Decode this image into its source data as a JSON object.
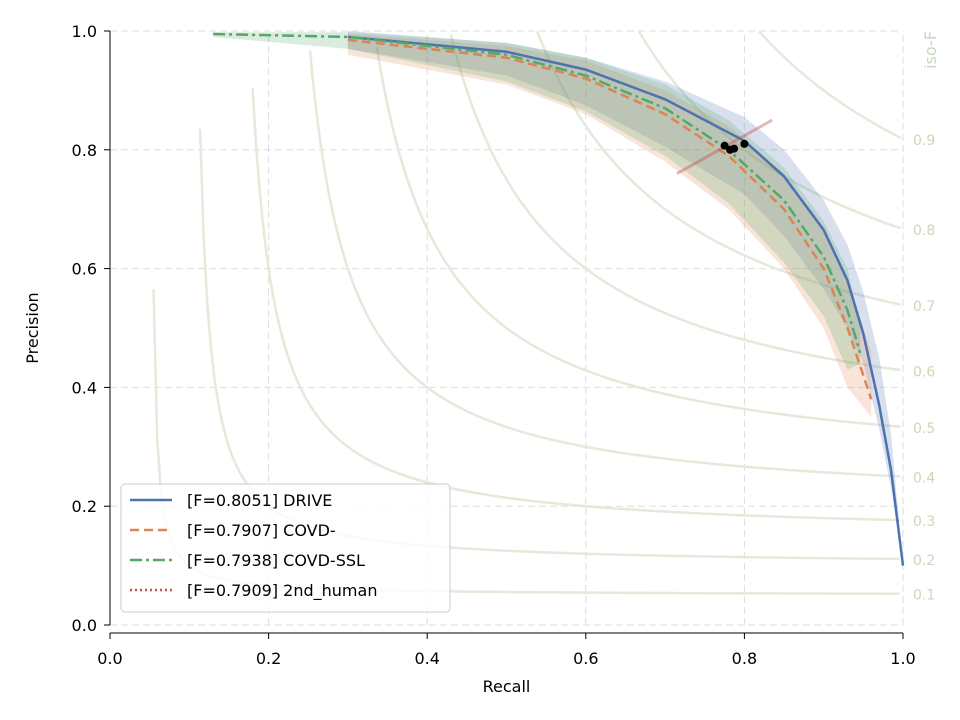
{
  "chart_data": {
    "type": "line",
    "xlabel": "Recall",
    "ylabel": "Precision",
    "right_label": "iso-F",
    "xlim": [
      0,
      1
    ],
    "ylim": [
      0,
      1
    ],
    "grid": true,
    "legend_placement": "lower-left",
    "xticks": [
      "0.0",
      "0.2",
      "0.4",
      "0.6",
      "0.8",
      "1.0"
    ],
    "yticks": [
      "0.0",
      "0.2",
      "0.4",
      "0.6",
      "0.8",
      "1.0"
    ],
    "iso_f": [
      0.1,
      0.2,
      0.3,
      0.4,
      0.5,
      0.6,
      0.7,
      0.8,
      0.9
    ],
    "iso_f_labels": [
      "0.1",
      "0.2",
      "0.3",
      "0.4",
      "0.5",
      "0.6",
      "0.7",
      "0.8",
      "0.9"
    ],
    "series": [
      {
        "name": "[F=0.8051] DRIVE",
        "color": "#4c72b0",
        "dash": "solid",
        "x": [
          0.3,
          0.5,
          0.6,
          0.7,
          0.8,
          0.85,
          0.9,
          0.93,
          0.95,
          0.97,
          0.985,
          1.0
        ],
        "y": [
          0.99,
          0.965,
          0.935,
          0.885,
          0.815,
          0.755,
          0.665,
          0.58,
          0.49,
          0.37,
          0.26,
          0.1
        ],
        "band_upper": [
          1.0,
          0.98,
          0.955,
          0.915,
          0.855,
          0.8,
          0.715,
          0.64,
          0.56,
          0.45,
          0.32,
          0.1
        ],
        "band_lower": [
          0.97,
          0.925,
          0.875,
          0.805,
          0.725,
          0.655,
          0.565,
          0.5,
          0.44,
          0.33,
          0.23,
          0.1
        ]
      },
      {
        "name": "[F=0.7907] COVD-",
        "color": "#dd8452",
        "dash": "dashed",
        "x": [
          0.3,
          0.5,
          0.6,
          0.7,
          0.78,
          0.85,
          0.9,
          0.93,
          0.96
        ],
        "y": [
          0.985,
          0.955,
          0.92,
          0.86,
          0.79,
          0.7,
          0.6,
          0.5,
          0.38
        ],
        "band_upper": [
          0.995,
          0.975,
          0.95,
          0.9,
          0.84,
          0.76,
          0.67,
          0.58,
          0.46
        ],
        "band_lower": [
          0.96,
          0.91,
          0.86,
          0.78,
          0.7,
          0.6,
          0.5,
          0.4,
          0.35
        ]
      },
      {
        "name": "[F=0.7938] COVD-SSL",
        "color": "#55a868",
        "dash": "dashdot",
        "x": [
          0.13,
          0.3,
          0.5,
          0.6,
          0.7,
          0.78,
          0.85,
          0.9,
          0.93,
          0.946
        ],
        "y": [
          0.995,
          0.99,
          0.96,
          0.925,
          0.87,
          0.8,
          0.715,
          0.62,
          0.53,
          0.458
        ],
        "band_upper": [
          0.998,
          0.998,
          0.98,
          0.955,
          0.91,
          0.85,
          0.77,
          0.68,
          0.6,
          0.5
        ],
        "band_lower": [
          0.99,
          0.97,
          0.915,
          0.865,
          0.79,
          0.71,
          0.61,
          0.52,
          0.43,
          0.44
        ]
      },
      {
        "name": "[F=0.7909] 2nd_human",
        "color": "#c44e52",
        "dash": "dotted",
        "points_x": [
          0.775,
          0.782,
          0.787,
          0.8
        ],
        "points_y": [
          0.807,
          0.8,
          0.802,
          0.81
        ],
        "segment_x": [
          0.715,
          0.835
        ],
        "segment_y": [
          0.76,
          0.85
        ]
      }
    ]
  }
}
